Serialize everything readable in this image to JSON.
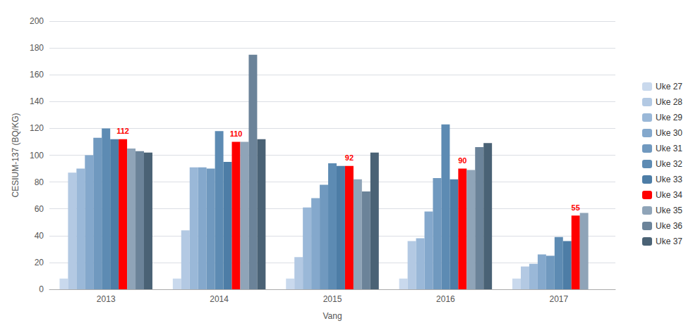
{
  "chart_data": {
    "type": "bar",
    "categories": [
      "2013",
      "2014",
      "2015",
      "2016",
      "2017"
    ],
    "series": [
      {
        "name": "Uke 27",
        "color": "#c9d9ed",
        "values": [
          8,
          8,
          8,
          8,
          8
        ]
      },
      {
        "name": "Uke 28",
        "color": "#b3c9e3",
        "values": [
          87,
          44,
          24,
          36,
          17
        ]
      },
      {
        "name": "Uke 29",
        "color": "#9ab8d8",
        "values": [
          90,
          91,
          61,
          38,
          19
        ]
      },
      {
        "name": "Uke 30",
        "color": "#84a8cc",
        "values": [
          100,
          91,
          68,
          58,
          26
        ]
      },
      {
        "name": "Uke 31",
        "color": "#7099bf",
        "values": [
          113,
          90,
          78,
          83,
          25
        ]
      },
      {
        "name": "Uke 32",
        "color": "#5d8bb3",
        "values": [
          120,
          118,
          94,
          123,
          39
        ]
      },
      {
        "name": "Uke 33",
        "color": "#4d7da6",
        "values": [
          112,
          95,
          92,
          82,
          36
        ]
      },
      {
        "name": "Uke 34",
        "color": "#ff0000",
        "values": [
          112,
          110,
          92,
          90,
          55
        ],
        "data_labels": true
      },
      {
        "name": "Uke 35",
        "color": "#8fa4b8",
        "values": [
          105,
          110,
          82,
          89,
          57
        ]
      },
      {
        "name": "Uke 36",
        "color": "#6b8399",
        "values": [
          103,
          175,
          73,
          106,
          0
        ]
      },
      {
        "name": "Uke 37",
        "color": "#4a6275",
        "values": [
          102,
          112,
          102,
          109,
          0
        ]
      }
    ],
    "xlabel": "Vang",
    "ylabel": "CESIUM-137 (BQ/KG)",
    "ylim": [
      0,
      200
    ],
    "yticks": [
      0,
      20,
      40,
      60,
      80,
      100,
      120,
      140,
      160,
      180,
      200
    ],
    "grid": true,
    "legend": "right"
  }
}
